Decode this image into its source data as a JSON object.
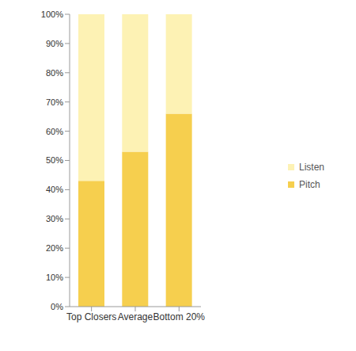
{
  "chart_data": {
    "type": "bar",
    "stacked": true,
    "legend": "right",
    "grid": false,
    "categories": [
      "Top Closers",
      "Average",
      "Bottom 20%"
    ],
    "series": [
      {
        "name": "Pitch",
        "color": "#f6cf4e",
        "values": [
          43,
          53,
          66
        ]
      },
      {
        "name": "Listen",
        "color": "#fdf2b4",
        "values": [
          57,
          47,
          34
        ]
      }
    ],
    "ylim": [
      0,
      100
    ],
    "yticks": [
      {
        "value": 0,
        "label": "0%"
      },
      {
        "value": 10,
        "label": "10%"
      },
      {
        "value": 20,
        "label": "20%"
      },
      {
        "value": 30,
        "label": "30%"
      },
      {
        "value": 40,
        "label": "40%"
      },
      {
        "value": 50,
        "label": "50%"
      },
      {
        "value": 60,
        "label": "60%"
      },
      {
        "value": 70,
        "label": "70%"
      },
      {
        "value": 80,
        "label": "80%"
      },
      {
        "value": 90,
        "label": "90%"
      },
      {
        "value": 100,
        "label": "100%"
      }
    ]
  }
}
